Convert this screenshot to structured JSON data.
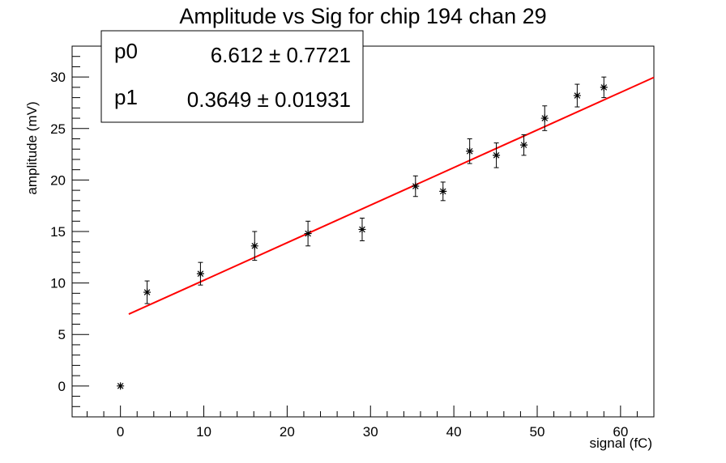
{
  "chart_data": {
    "type": "scatter",
    "title": "Amplitude vs Sig for chip 194 chan 29",
    "xlabel": "signal (fC)",
    "ylabel": "amplitude (mV)",
    "xlim": [
      -5.8,
      64
    ],
    "ylim": [
      -3,
      33
    ],
    "x_ticks": [
      0,
      10,
      20,
      30,
      40,
      50,
      60
    ],
    "y_ticks": [
      0,
      5,
      10,
      15,
      20,
      25,
      30
    ],
    "grid": false,
    "legend": "none",
    "points": [
      {
        "x": 0,
        "y": 0,
        "err": 0
      },
      {
        "x": 3.2,
        "y": 9.1,
        "err": 1.1
      },
      {
        "x": 9.6,
        "y": 10.9,
        "err": 1.1
      },
      {
        "x": 16.1,
        "y": 13.6,
        "err": 1.4
      },
      {
        "x": 22.5,
        "y": 14.8,
        "err": 1.2
      },
      {
        "x": 29.0,
        "y": 15.2,
        "err": 1.1
      },
      {
        "x": 35.4,
        "y": 19.4,
        "err": 1.0
      },
      {
        "x": 38.7,
        "y": 18.9,
        "err": 0.9
      },
      {
        "x": 41.9,
        "y": 22.8,
        "err": 1.2
      },
      {
        "x": 45.1,
        "y": 22.4,
        "err": 1.2
      },
      {
        "x": 48.4,
        "y": 23.4,
        "err": 1.0
      },
      {
        "x": 50.9,
        "y": 26.0,
        "err": 1.2
      },
      {
        "x": 54.8,
        "y": 28.2,
        "err": 1.1
      },
      {
        "x": 58.0,
        "y": 29.0,
        "err": 1.0
      }
    ],
    "fit": {
      "p0": 6.612,
      "p1": 0.3649,
      "x_range": [
        1,
        64
      ],
      "color": "#ff0000"
    },
    "stats": [
      {
        "name": "p0",
        "value": "6.612 ± 0.7721"
      },
      {
        "name": "p1",
        "value": "0.3649 ± 0.01931"
      }
    ],
    "stats_placement": "top-left"
  }
}
